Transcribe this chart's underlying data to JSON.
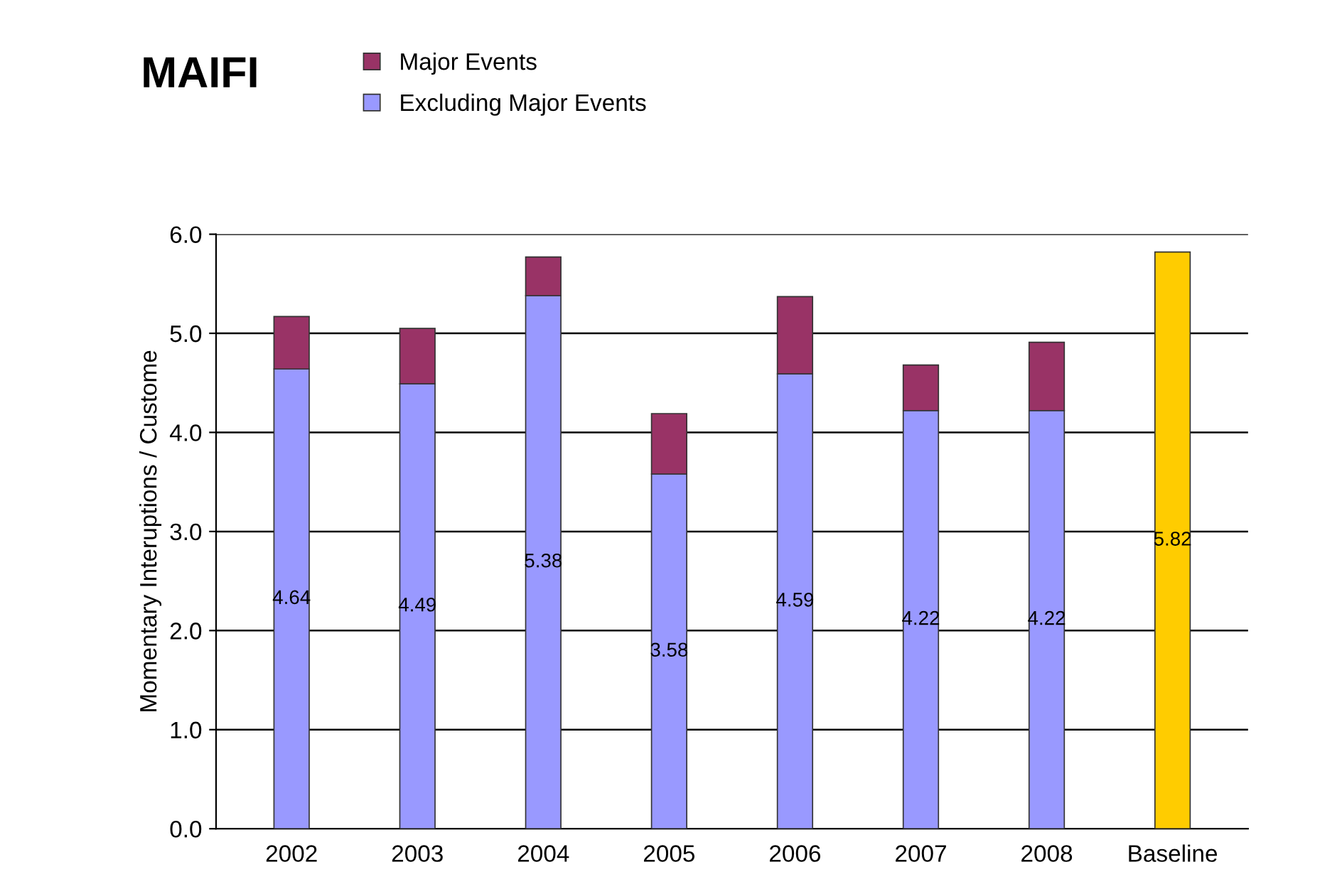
{
  "chart_data": {
    "type": "bar",
    "title": "MAIFI",
    "ylabel": "Momentary Interuptions / Custome",
    "categories": [
      "2002",
      "2003",
      "2004",
      "2005",
      "2006",
      "2007",
      "2008",
      "Baseline"
    ],
    "stacked": true,
    "series": [
      {
        "name": "Excluding Major Events",
        "color": "#9999ff",
        "colors": [
          "#9999ff",
          "#9999ff",
          "#9999ff",
          "#9999ff",
          "#9999ff",
          "#9999ff",
          "#9999ff",
          "#ffcc00"
        ],
        "values": [
          4.64,
          4.49,
          5.38,
          3.58,
          4.59,
          4.22,
          4.22,
          5.82
        ],
        "value_labels": [
          "4.64",
          "4.49",
          "5.38",
          "3.58",
          "4.59",
          "4.22",
          "4.22",
          "5.82"
        ]
      },
      {
        "name": "Major Events",
        "color": "#993366",
        "values": [
          0.53,
          0.56,
          0.39,
          0.61,
          0.78,
          0.46,
          0.69,
          null
        ]
      }
    ],
    "ylim": [
      0,
      6
    ],
    "yticks": [
      {
        "value": 0,
        "label": "0.0"
      },
      {
        "value": 1,
        "label": "1.0"
      },
      {
        "value": 2,
        "label": "2.0"
      },
      {
        "value": 3,
        "label": "3.0"
      },
      {
        "value": 4,
        "label": "4.0"
      },
      {
        "value": 5,
        "label": "5.0"
      },
      {
        "value": 6,
        "label": "6.0"
      }
    ],
    "grid": "y",
    "legend": "top left"
  }
}
